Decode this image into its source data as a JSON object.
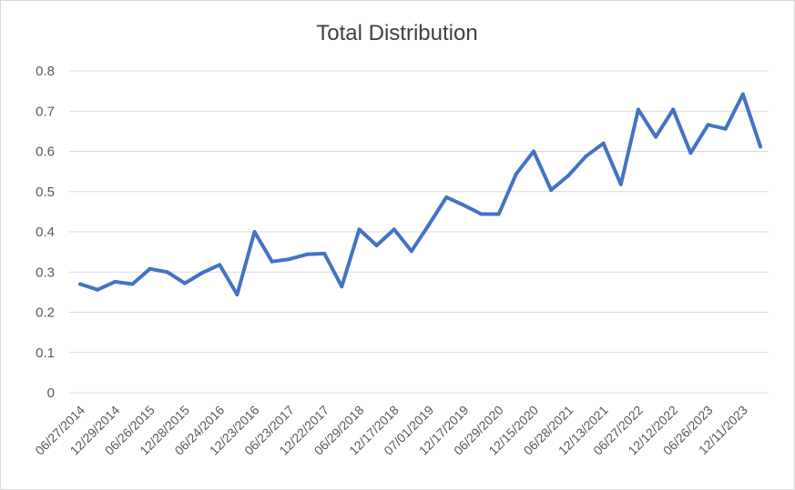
{
  "chart_data": {
    "type": "line",
    "title": "Total Distribution",
    "xlabel": "",
    "ylabel": "",
    "ylim": [
      0,
      0.8
    ],
    "yticks": [
      "0",
      "0.1",
      "0.2",
      "0.3",
      "0.4",
      "0.5",
      "0.6",
      "0.7",
      "0.8"
    ],
    "grid": true,
    "legend": "none",
    "colors": {
      "line": "#4472c4",
      "grid": "#d9d9d9",
      "text": "#595959"
    },
    "x_tick_labels": [
      "06/27/2014",
      "12/29/2014",
      "06/26/2015",
      "12/28/2015",
      "06/24/2016",
      "12/23/2016",
      "06/23/2017",
      "12/22/2017",
      "06/29/2018",
      "12/17/2018",
      "07/01/2019",
      "12/17/2019",
      "06/29/2020",
      "12/15/2020",
      "06/28/2021",
      "12/13/2021",
      "06/27/2022",
      "12/12/2022",
      "06/26/2023",
      "12/11/2023"
    ],
    "series": [
      {
        "values": [
          0.27,
          0.256,
          0.276,
          0.27,
          0.308,
          0.3,
          0.272,
          0.298,
          0.318,
          0.244,
          0.4,
          0.326,
          0.332,
          0.344,
          0.346,
          0.264,
          0.406,
          0.366,
          0.406,
          0.352,
          0.418,
          0.486,
          0.466,
          0.444,
          0.444,
          0.544,
          0.6,
          0.504,
          0.54,
          0.588,
          0.62,
          0.518,
          0.704,
          0.636,
          0.704,
          0.596,
          0.666,
          0.656,
          0.742,
          0.612
        ]
      }
    ]
  }
}
